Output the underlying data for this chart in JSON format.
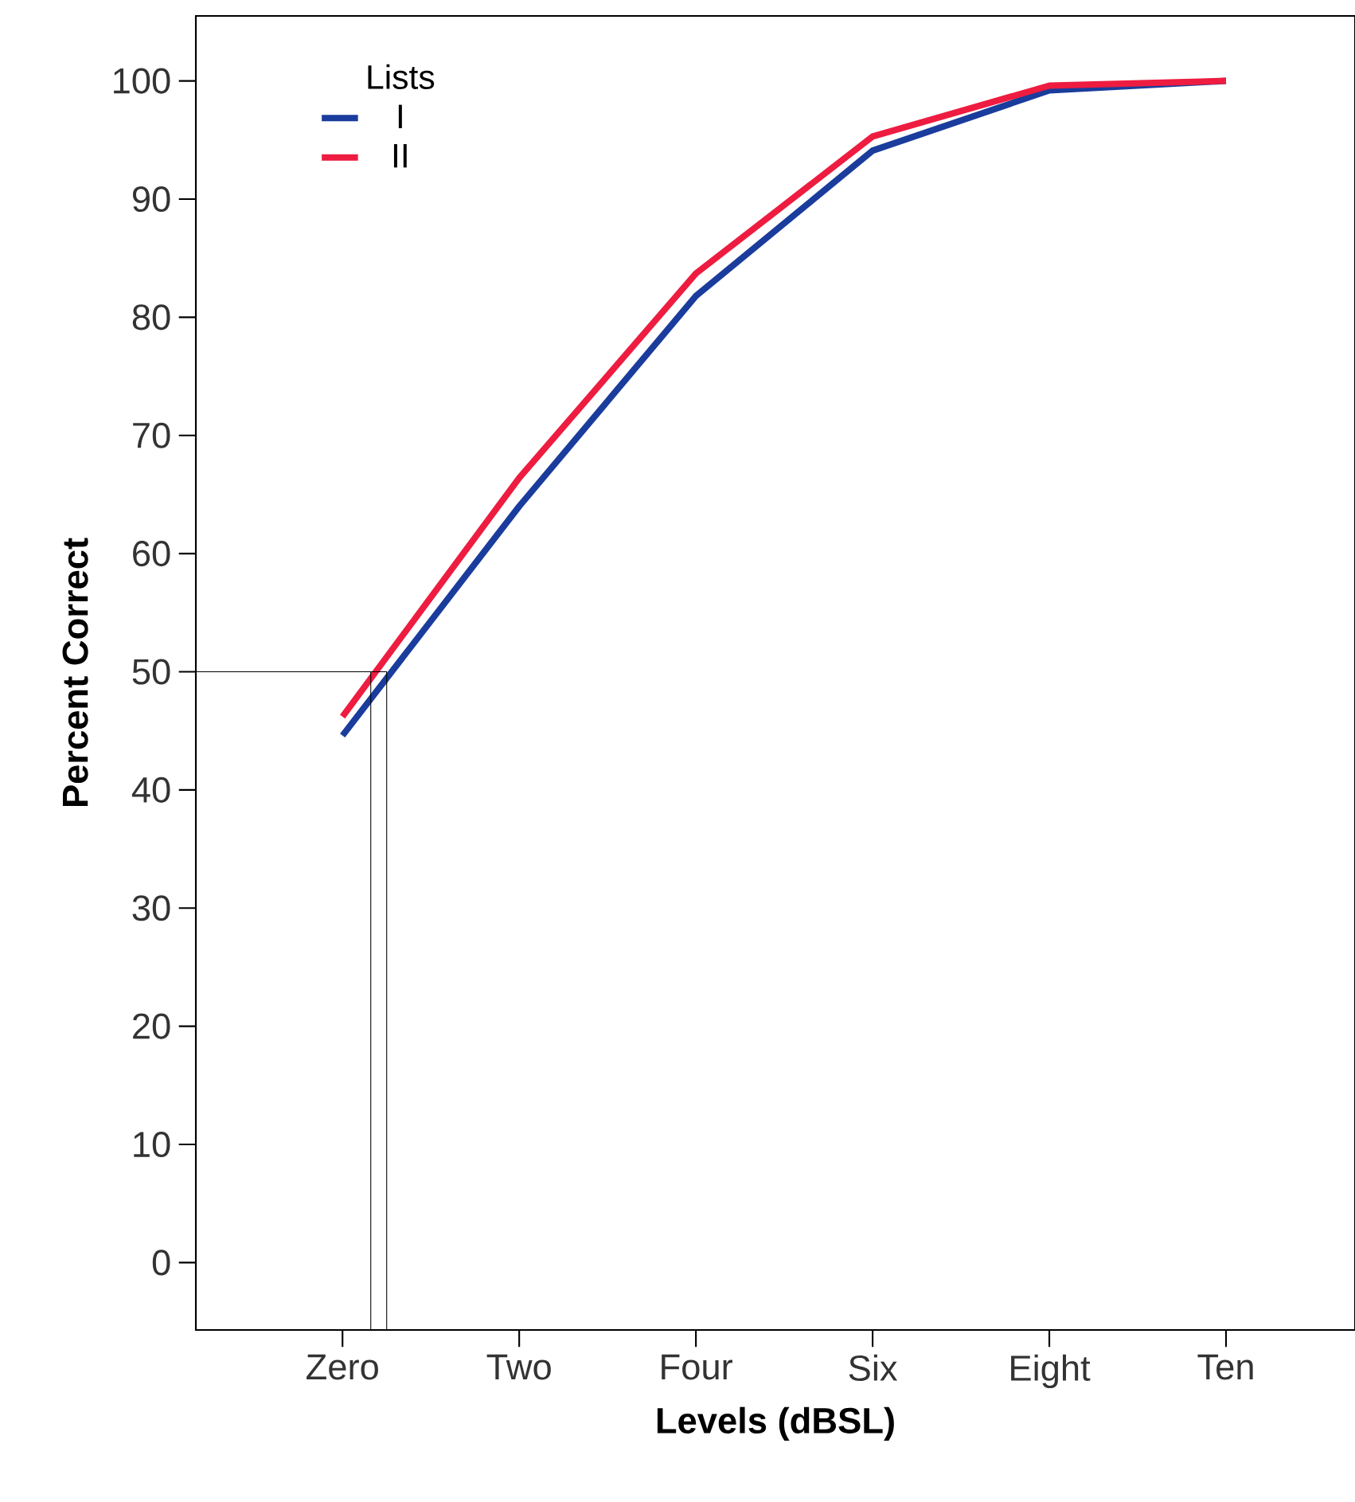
{
  "chart_data": {
    "type": "line",
    "xlabel": "Levels (dBSL)",
    "ylabel": "Percent Correct",
    "legend_title": "Lists",
    "categories": [
      "Zero",
      "Two",
      "Four",
      "Six",
      "Eight",
      "Ten"
    ],
    "series": [
      {
        "name": "I",
        "color": "#1a3c9c",
        "values": [
          44.6,
          64,
          81.8,
          94.1,
          99.2,
          100
        ]
      },
      {
        "name": "II",
        "color": "#ee1c40",
        "values": [
          46.2,
          66.4,
          83.7,
          95.3,
          99.6,
          100
        ]
      }
    ],
    "ylim": [
      -5.7,
      105.5
    ],
    "yticks": [
      0,
      10,
      20,
      30,
      40,
      50,
      60,
      70,
      80,
      90,
      100
    ],
    "ref_lines": [
      {
        "axis": "y",
        "value": 50,
        "color": "#000000"
      }
    ],
    "grid": false,
    "legend": "top left",
    "marker": "none",
    "line_style": "solid"
  }
}
